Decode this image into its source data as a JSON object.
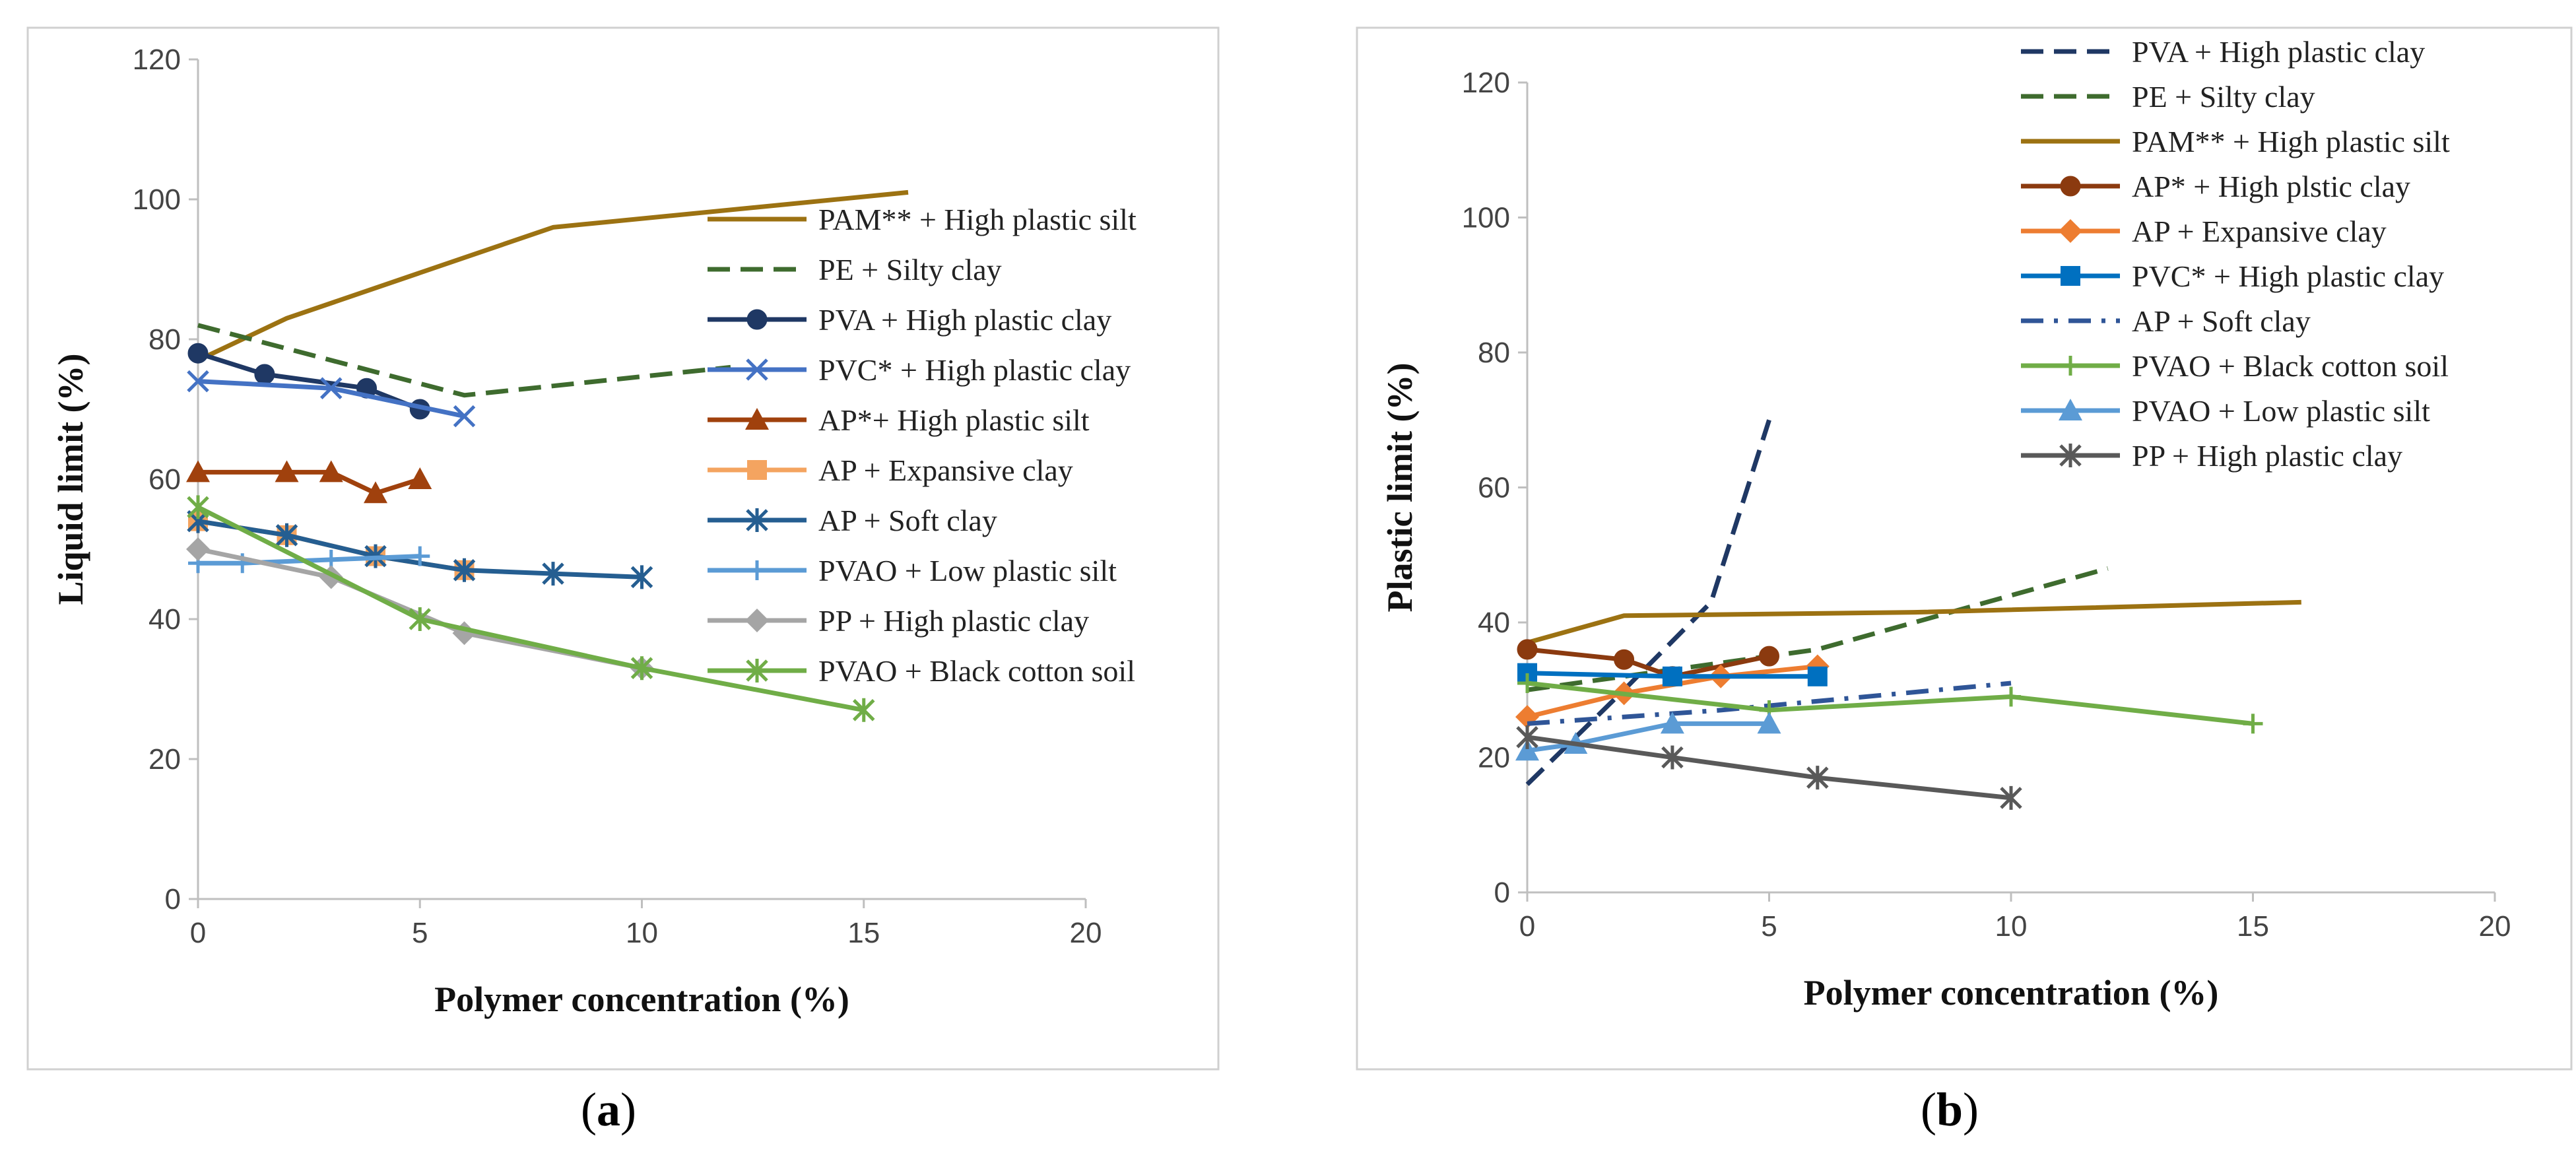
{
  "chart_data": [
    {
      "type": "line",
      "panel_label": "a",
      "xlabel": "Polymer concentration (%)",
      "ylabel": "Liquid limit (%)",
      "xlim": [
        0,
        20
      ],
      "ylim": [
        0,
        120
      ],
      "xticks": [
        0,
        5,
        10,
        15,
        20
      ],
      "yticks": [
        0,
        20,
        40,
        60,
        80,
        100,
        120
      ],
      "grid": false,
      "legend_position": "right",
      "series": [
        {
          "name": "PAM** + High plastic silt",
          "color": "#9C7212",
          "dash": "solid",
          "marker": "none",
          "x": [
            0,
            2,
            8,
            16
          ],
          "y": [
            77,
            83,
            96,
            101
          ]
        },
        {
          "name": "PE + Silty clay",
          "color": "#3E6B2E",
          "dash": "dashed",
          "marker": "none",
          "x": [
            0,
            6,
            12
          ],
          "y": [
            82,
            72,
            76
          ]
        },
        {
          "name": "PVA + High plastic clay",
          "color": "#1F3864",
          "dash": "solid",
          "marker": "circle",
          "x": [
            0,
            1.5,
            3.8,
            5
          ],
          "y": [
            78,
            75,
            73,
            70
          ]
        },
        {
          "name": "PVC* + High plastic clay",
          "color": "#4472C4",
          "dash": "solid",
          "marker": "x",
          "x": [
            0,
            3,
            6
          ],
          "y": [
            74,
            73,
            69
          ]
        },
        {
          "name": "AP*+ High plastic silt",
          "color": "#A0410D",
          "dash": "solid",
          "marker": "triangle",
          "x": [
            0,
            2,
            3,
            4,
            5
          ],
          "y": [
            61,
            61,
            61,
            58,
            60
          ]
        },
        {
          "name": "AP + Expansive clay",
          "color": "#F4A460",
          "dash": "solid",
          "marker": "square",
          "x": [
            0,
            2,
            4,
            6
          ],
          "y": [
            54,
            52,
            49,
            47
          ]
        },
        {
          "name": "AP + Soft clay",
          "color": "#255E91",
          "dash": "solid",
          "marker": "star",
          "x": [
            0,
            2,
            4,
            6,
            8,
            10
          ],
          "y": [
            54,
            52,
            49,
            47,
            46.5,
            46
          ]
        },
        {
          "name": "PVAO + Low plastic silt",
          "color": "#5B9BD5",
          "dash": "solid",
          "marker": "plus",
          "x": [
            0,
            1,
            3,
            5
          ],
          "y": [
            48,
            48,
            48.5,
            49
          ]
        },
        {
          "name": "PP + High plastic clay",
          "color": "#A5A5A5",
          "dash": "solid",
          "marker": "diamond",
          "x": [
            0,
            3,
            6,
            10
          ],
          "y": [
            50,
            46,
            38,
            33
          ]
        },
        {
          "name": "PVAO + Black cotton soil",
          "color": "#70AD47",
          "dash": "solid",
          "marker": "star",
          "x": [
            0,
            5,
            10,
            15
          ],
          "y": [
            56,
            40,
            33,
            27
          ]
        }
      ]
    },
    {
      "type": "line",
      "panel_label": "b",
      "xlabel": "Polymer concentration (%)",
      "ylabel": "Plastic limit (%)",
      "xlim": [
        0,
        20
      ],
      "ylim": [
        0,
        120
      ],
      "xticks": [
        0,
        5,
        10,
        15,
        20
      ],
      "yticks": [
        0,
        20,
        40,
        60,
        80,
        100,
        120
      ],
      "grid": false,
      "legend_position": "top-right",
      "series": [
        {
          "name": "PVA + High plastic clay",
          "color": "#1F3864",
          "dash": "dashed",
          "marker": "none",
          "x": [
            0,
            2,
            3.8,
            5
          ],
          "y": [
            16,
            30,
            43,
            70
          ]
        },
        {
          "name": "PE + Silty clay",
          "color": "#3E6B2E",
          "dash": "dashed",
          "marker": "none",
          "x": [
            0,
            6,
            12
          ],
          "y": [
            30,
            36,
            48
          ]
        },
        {
          "name": "PAM** + High plastic silt",
          "color": "#9C7212",
          "dash": "solid",
          "marker": "none",
          "x": [
            0,
            2,
            8,
            16
          ],
          "y": [
            37,
            41,
            41.5,
            43
          ]
        },
        {
          "name": "AP* + High plstic clay",
          "color": "#8B3A0F",
          "dash": "solid",
          "marker": "circle",
          "x": [
            0,
            2,
            3,
            5
          ],
          "y": [
            36,
            34.5,
            32,
            35
          ]
        },
        {
          "name": "AP + Expansive clay",
          "color": "#ED7D31",
          "dash": "solid",
          "marker": "diamond",
          "x": [
            0,
            2,
            4,
            6
          ],
          "y": [
            26,
            29.5,
            32,
            33.5
          ]
        },
        {
          "name": "PVC* + High plastic clay",
          "color": "#0070C0",
          "dash": "solid",
          "marker": "square",
          "x": [
            0,
            3,
            6
          ],
          "y": [
            32.5,
            32,
            32
          ]
        },
        {
          "name": "AP + Soft clay",
          "color": "#2F5597",
          "dash": "dashdot",
          "marker": "none",
          "x": [
            0,
            4,
            10
          ],
          "y": [
            25,
            27,
            31
          ]
        },
        {
          "name": "PVAO + Black cotton soil",
          "color": "#70AD47",
          "dash": "solid",
          "marker": "plus",
          "x": [
            0,
            5,
            10,
            15
          ],
          "y": [
            31,
            27,
            29,
            25
          ]
        },
        {
          "name": "PVAO + Low plastic silt",
          "color": "#5B9BD5",
          "dash": "solid",
          "marker": "triangle",
          "x": [
            0,
            1,
            3,
            5
          ],
          "y": [
            21,
            22,
            25,
            25
          ]
        },
        {
          "name": "PP + High plastic clay",
          "color": "#595959",
          "dash": "solid",
          "marker": "star",
          "x": [
            0,
            3,
            6,
            10
          ],
          "y": [
            23,
            20,
            17,
            14
          ]
        }
      ]
    }
  ]
}
